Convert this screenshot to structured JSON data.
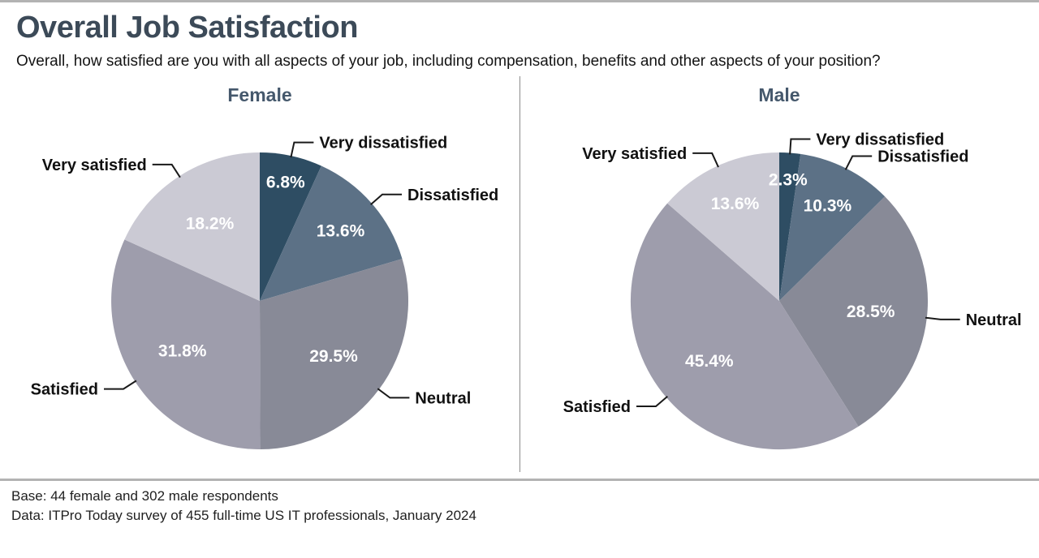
{
  "title": "Overall Job Satisfaction",
  "subtitle": "Overall, how satisfied are you with all aspects of your job, including compensation, benefits and other aspects of your position?",
  "footer": {
    "base": "Base: 44 female and 302 male respondents",
    "source": "Data: ITPro Today survey of 455 full-time US IT professionals, January 2024"
  },
  "colors": {
    "title": "#3c4a58",
    "chart_heading": "#45586c",
    "leader_line": "#1a1a1a",
    "percent_label": "#ffffff"
  },
  "chart_data": [
    {
      "type": "pie",
      "title": "Female",
      "labels": [
        "Very dissatisfied",
        "Dissatisfied",
        "Neutral",
        "Satisfied",
        "Very satisfied"
      ],
      "values": [
        6.8,
        13.6,
        29.5,
        31.8,
        18.2
      ],
      "colors": [
        "#2e4d63",
        "#5c7186",
        "#888a97",
        "#9e9dac",
        "#cbcad4"
      ],
      "value_suffix": "%",
      "legend_position": "outside-labels",
      "start_angle": "top",
      "direction": "clockwise"
    },
    {
      "type": "pie",
      "title": "Male",
      "labels": [
        "Very dissatisfied",
        "Dissatisfied",
        "Neutral",
        "Satisfied",
        "Very satisfied"
      ],
      "values": [
        2.3,
        10.3,
        28.5,
        45.4,
        13.6
      ],
      "colors": [
        "#2e4d63",
        "#5c7186",
        "#888a97",
        "#9e9dac",
        "#cbcad4"
      ],
      "value_suffix": "%",
      "legend_position": "outside-labels",
      "start_angle": "top",
      "direction": "clockwise"
    }
  ]
}
